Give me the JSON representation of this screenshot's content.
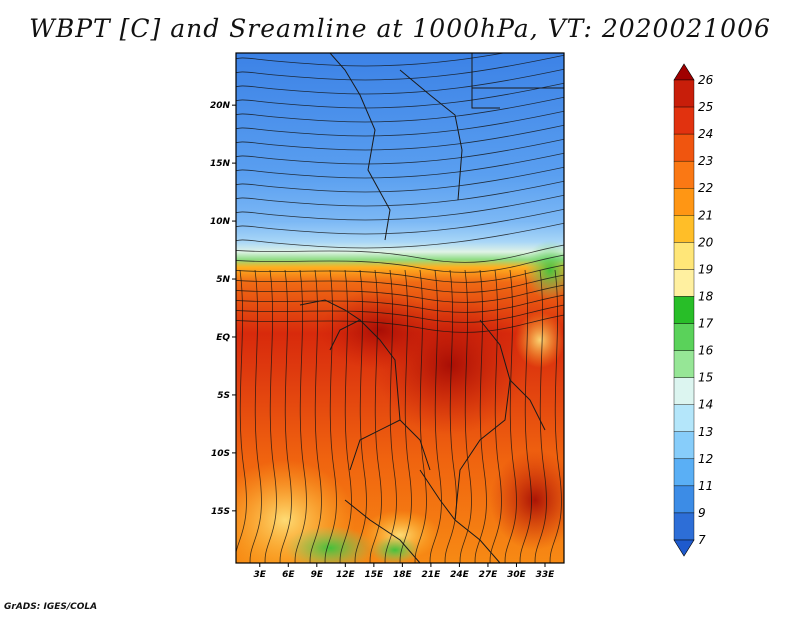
{
  "title": "WBPT [C] and Sreamline at 1000hPa, VT: 2020021006",
  "footer": "GrADS: IGES/COLA",
  "map": {
    "lat_ticks": [
      {
        "label": "20N",
        "lat": 20
      },
      {
        "label": "15N",
        "lat": 15
      },
      {
        "label": "10N",
        "lat": 10
      },
      {
        "label": "5N",
        "lat": 5
      },
      {
        "label": "EQ",
        "lat": 0
      },
      {
        "label": "5S",
        "lat": -5
      },
      {
        "label": "10S",
        "lat": -10
      },
      {
        "label": "15S",
        "lat": -15
      }
    ],
    "lon_ticks": [
      {
        "label": "3E",
        "lon": 3
      },
      {
        "label": "6E",
        "lon": 6
      },
      {
        "label": "9E",
        "lon": 9
      },
      {
        "label": "12E",
        "lon": 12
      },
      {
        "label": "15E",
        "lon": 15
      },
      {
        "label": "18E",
        "lon": 18
      },
      {
        "label": "21E",
        "lon": 21
      },
      {
        "label": "24E",
        "lon": 24
      },
      {
        "label": "27E",
        "lon": 27
      },
      {
        "label": "30E",
        "lon": 30
      },
      {
        "label": "33E",
        "lon": 33
      }
    ],
    "lon_range": [
      0.5,
      35
    ],
    "lat_range": [
      -19.5,
      24.5
    ]
  },
  "colorbar": {
    "labels": [
      "26",
      "25",
      "24",
      "23",
      "22",
      "21",
      "20",
      "19",
      "18",
      "17",
      "16",
      "15",
      "14",
      "13",
      "12",
      "11",
      "9",
      "7"
    ],
    "colors": [
      "#a00000",
      "#c81e0a",
      "#e1320f",
      "#f0550f",
      "#fa7814",
      "#ff9614",
      "#ffbe28",
      "#ffe678",
      "#fff0a0",
      "#28be28",
      "#5ad25a",
      "#96e696",
      "#dcf5f0",
      "#b4e6fa",
      "#87cdfa",
      "#5aaff5",
      "#3c8ce6",
      "#2d6ed7",
      "#1e5acd"
    ]
  }
}
